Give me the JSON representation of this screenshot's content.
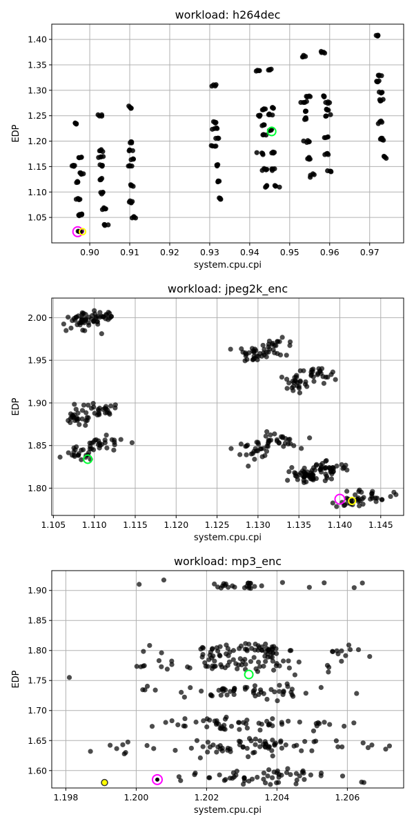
{
  "colors": {
    "point": "#000000",
    "highlight_magenta": "#ff00ff",
    "highlight_yellow": "#ffff00",
    "highlight_green": "#00ff33"
  },
  "chart_data": [
    {
      "type": "scatter",
      "title": "workload: h264dec",
      "xlabel": "system.cpu.cpi",
      "ylabel": "EDP",
      "xlim": [
        0.8905,
        0.9785
      ],
      "ylim": [
        1.0,
        1.43
      ],
      "xticks": [
        0.9,
        0.91,
        0.92,
        0.93,
        0.94,
        0.95,
        0.96,
        0.97
      ],
      "xtick_labels": [
        "0.90",
        "0.91",
        "0.92",
        "0.93",
        "0.94",
        "0.95",
        "0.96",
        "0.97"
      ],
      "yticks": [
        1.05,
        1.1,
        1.15,
        1.2,
        1.25,
        1.3,
        1.35,
        1.4
      ],
      "ytick_labels": [
        "1.05",
        "1.10",
        "1.15",
        "1.20",
        "1.25",
        "1.30",
        "1.35",
        "1.40"
      ],
      "grid": true,
      "point_alpha": 0.85,
      "clusters": [
        {
          "x": 0.8965,
          "y": 1.234,
          "n": 5
        },
        {
          "x": 0.8963,
          "y": 1.152,
          "n": 5
        },
        {
          "x": 0.8967,
          "y": 1.12,
          "n": 4
        },
        {
          "x": 0.8975,
          "y": 1.167,
          "n": 4
        },
        {
          "x": 0.898,
          "y": 1.138,
          "n": 5
        },
        {
          "x": 0.8972,
          "y": 1.085,
          "n": 5
        },
        {
          "x": 0.8978,
          "y": 1.055,
          "n": 6
        },
        {
          "x": 0.8978,
          "y": 1.023,
          "n": 4
        },
        {
          "x": 0.9025,
          "y": 1.25,
          "n": 4
        },
        {
          "x": 0.9028,
          "y": 1.168,
          "n": 4
        },
        {
          "x": 0.903,
          "y": 1.182,
          "n": 4
        },
        {
          "x": 0.9033,
          "y": 1.152,
          "n": 4
        },
        {
          "x": 0.9025,
          "y": 1.125,
          "n": 4
        },
        {
          "x": 0.903,
          "y": 1.098,
          "n": 4
        },
        {
          "x": 0.9035,
          "y": 1.067,
          "n": 5
        },
        {
          "x": 0.904,
          "y": 1.035,
          "n": 4
        },
        {
          "x": 0.91,
          "y": 1.266,
          "n": 4
        },
        {
          "x": 0.9105,
          "y": 1.197,
          "n": 4
        },
        {
          "x": 0.91,
          "y": 1.182,
          "n": 4
        },
        {
          "x": 0.9105,
          "y": 1.165,
          "n": 4
        },
        {
          "x": 0.91,
          "y": 1.15,
          "n": 4
        },
        {
          "x": 0.9105,
          "y": 1.112,
          "n": 4
        },
        {
          "x": 0.9105,
          "y": 1.08,
          "n": 5
        },
        {
          "x": 0.911,
          "y": 1.05,
          "n": 4
        },
        {
          "x": 0.9312,
          "y": 1.31,
          "n": 4
        },
        {
          "x": 0.9315,
          "y": 1.237,
          "n": 4
        },
        {
          "x": 0.9312,
          "y": 1.225,
          "n": 4
        },
        {
          "x": 0.9318,
          "y": 1.206,
          "n": 4
        },
        {
          "x": 0.9312,
          "y": 1.19,
          "n": 4
        },
        {
          "x": 0.9315,
          "y": 1.152,
          "n": 4
        },
        {
          "x": 0.932,
          "y": 1.122,
          "n": 5
        },
        {
          "x": 0.9325,
          "y": 1.087,
          "n": 4
        },
        {
          "x": 0.942,
          "y": 1.338,
          "n": 4
        },
        {
          "x": 0.945,
          "y": 1.341,
          "n": 4
        },
        {
          "x": 0.9435,
          "y": 1.263,
          "n": 5
        },
        {
          "x": 0.946,
          "y": 1.265,
          "n": 4
        },
        {
          "x": 0.9425,
          "y": 1.25,
          "n": 4
        },
        {
          "x": 0.9455,
          "y": 1.253,
          "n": 4
        },
        {
          "x": 0.9435,
          "y": 1.232,
          "n": 4
        },
        {
          "x": 0.945,
          "y": 1.222,
          "n": 5
        },
        {
          "x": 0.9435,
          "y": 1.212,
          "n": 4
        },
        {
          "x": 0.943,
          "y": 1.176,
          "n": 4
        },
        {
          "x": 0.946,
          "y": 1.178,
          "n": 4
        },
        {
          "x": 0.9435,
          "y": 1.145,
          "n": 5
        },
        {
          "x": 0.946,
          "y": 1.145,
          "n": 4
        },
        {
          "x": 0.944,
          "y": 1.11,
          "n": 4
        },
        {
          "x": 0.9465,
          "y": 1.112,
          "n": 4
        },
        {
          "x": 0.9535,
          "y": 1.366,
          "n": 4
        },
        {
          "x": 0.9585,
          "y": 1.375,
          "n": 4
        },
        {
          "x": 0.9545,
          "y": 1.288,
          "n": 5
        },
        {
          "x": 0.9585,
          "y": 1.288,
          "n": 4
        },
        {
          "x": 0.9535,
          "y": 1.277,
          "n": 4
        },
        {
          "x": 0.959,
          "y": 1.276,
          "n": 4
        },
        {
          "x": 0.954,
          "y": 1.258,
          "n": 4
        },
        {
          "x": 0.9595,
          "y": 1.262,
          "n": 4
        },
        {
          "x": 0.954,
          "y": 1.244,
          "n": 4
        },
        {
          "x": 0.9595,
          "y": 1.25,
          "n": 4
        },
        {
          "x": 0.9545,
          "y": 1.2,
          "n": 5
        },
        {
          "x": 0.959,
          "y": 1.208,
          "n": 4
        },
        {
          "x": 0.955,
          "y": 1.166,
          "n": 5
        },
        {
          "x": 0.9595,
          "y": 1.174,
          "n": 4
        },
        {
          "x": 0.9555,
          "y": 1.133,
          "n": 4
        },
        {
          "x": 0.96,
          "y": 1.14,
          "n": 4
        },
        {
          "x": 0.972,
          "y": 1.408,
          "n": 4
        },
        {
          "x": 0.9725,
          "y": 1.329,
          "n": 4
        },
        {
          "x": 0.972,
          "y": 1.318,
          "n": 4
        },
        {
          "x": 0.973,
          "y": 1.295,
          "n": 4
        },
        {
          "x": 0.9728,
          "y": 1.282,
          "n": 4
        },
        {
          "x": 0.9725,
          "y": 1.237,
          "n": 4
        },
        {
          "x": 0.9732,
          "y": 1.204,
          "n": 5
        },
        {
          "x": 0.9738,
          "y": 1.168,
          "n": 4
        }
      ],
      "highlights": [
        {
          "x": 0.897,
          "y": 1.022,
          "color": "#ff00ff",
          "style": "ring",
          "r": 7
        },
        {
          "x": 0.8977,
          "y": 1.022,
          "color": "#000000",
          "style": "dot",
          "r": 3.5
        },
        {
          "x": 0.8982,
          "y": 1.022,
          "color": "#ffff00",
          "style": "ring",
          "r": 4.5
        },
        {
          "x": 0.9455,
          "y": 1.219,
          "color": "#00ff33",
          "style": "ring",
          "r": 6
        }
      ]
    },
    {
      "type": "scatter",
      "title": "workload: jpeg2k_enc",
      "xlabel": "system.cpu.cpi",
      "ylabel": "EDP",
      "xlim": [
        1.1048,
        1.1478
      ],
      "ylim": [
        1.768,
        2.023
      ],
      "xticks": [
        1.105,
        1.11,
        1.115,
        1.12,
        1.125,
        1.13,
        1.135,
        1.14,
        1.145
      ],
      "xtick_labels": [
        "1.105",
        "1.110",
        "1.115",
        "1.120",
        "1.125",
        "1.130",
        "1.135",
        "1.140",
        "1.145"
      ],
      "yticks": [
        1.8,
        1.85,
        1.9,
        1.95,
        2.0
      ],
      "ytick_labels": [
        "1.80",
        "1.85",
        "1.90",
        "1.95",
        "2.00"
      ],
      "grid": true,
      "point_alpha": 0.7,
      "clusters": [
        {
          "x": 1.1082,
          "y": 1.994,
          "n": 28,
          "sx": 0.0012,
          "sy": 0.005
        },
        {
          "x": 1.1105,
          "y": 2.001,
          "n": 32,
          "sx": 0.0013,
          "sy": 0.005
        },
        {
          "x": 1.108,
          "y": 1.882,
          "n": 24,
          "sx": 0.001,
          "sy": 0.005
        },
        {
          "x": 1.1105,
          "y": 1.89,
          "n": 26,
          "sx": 0.0013,
          "sy": 0.005
        },
        {
          "x": 1.1082,
          "y": 1.84,
          "n": 18,
          "sx": 0.0009,
          "sy": 0.004
        },
        {
          "x": 1.111,
          "y": 1.85,
          "n": 28,
          "sx": 0.0015,
          "sy": 0.005
        },
        {
          "x": 1.1295,
          "y": 1.958,
          "n": 24,
          "sx": 0.001,
          "sy": 0.005
        },
        {
          "x": 1.1322,
          "y": 1.965,
          "n": 26,
          "sx": 0.0013,
          "sy": 0.005
        },
        {
          "x": 1.1295,
          "y": 1.846,
          "n": 24,
          "sx": 0.0012,
          "sy": 0.005
        },
        {
          "x": 1.1322,
          "y": 1.855,
          "n": 28,
          "sx": 0.0013,
          "sy": 0.005
        },
        {
          "x": 1.1345,
          "y": 1.923,
          "n": 24,
          "sx": 0.001,
          "sy": 0.005
        },
        {
          "x": 1.1372,
          "y": 1.932,
          "n": 24,
          "sx": 0.0012,
          "sy": 0.005
        },
        {
          "x": 1.136,
          "y": 1.814,
          "n": 40,
          "sx": 0.0014,
          "sy": 0.005
        },
        {
          "x": 1.1385,
          "y": 1.823,
          "n": 40,
          "sx": 0.0015,
          "sy": 0.005
        },
        {
          "x": 1.1413,
          "y": 1.785,
          "n": 20,
          "sx": 0.001,
          "sy": 0.004
        },
        {
          "x": 1.144,
          "y": 1.792,
          "n": 22,
          "sx": 0.0012,
          "sy": 0.004
        }
      ],
      "highlights": [
        {
          "x": 1.1092,
          "y": 1.834,
          "color": "#00ff33",
          "style": "ring",
          "r": 6
        },
        {
          "x": 1.14,
          "y": 1.787,
          "color": "#ff00ff",
          "style": "ring",
          "r": 7
        },
        {
          "x": 1.1415,
          "y": 1.785,
          "color": "#ffff00",
          "style": "ring",
          "r": 5
        }
      ]
    },
    {
      "type": "scatter",
      "title": "workload: mp3_enc",
      "xlabel": "system.cpu.cpi",
      "ylabel": "EDP",
      "xlim": [
        1.1976,
        1.2076
      ],
      "ylim": [
        1.571,
        1.933
      ],
      "xticks": [
        1.198,
        1.2,
        1.202,
        1.204,
        1.206
      ],
      "xtick_labels": [
        "1.198",
        "1.200",
        "1.202",
        "1.204",
        "1.206"
      ],
      "yticks": [
        1.6,
        1.65,
        1.7,
        1.75,
        1.8,
        1.85,
        1.9
      ],
      "ytick_labels": [
        "1.60",
        "1.65",
        "1.70",
        "1.75",
        "1.80",
        "1.85",
        "1.90"
      ],
      "grid": true,
      "point_alpha": 0.7,
      "bands": [
        {
          "y": 1.908,
          "x0": 1.2,
          "x1": 1.2068,
          "n": 28,
          "dense": [
            1.2023,
            1.2035
          ],
          "sy": 0.004
        },
        {
          "y": 1.8,
          "x0": 1.1998,
          "x1": 1.2068,
          "n": 70,
          "dense": [
            1.2018,
            1.204
          ],
          "sy": 0.006
        },
        {
          "y": 1.775,
          "x0": 1.1998,
          "x1": 1.2068,
          "n": 60,
          "dense": [
            1.2018,
            1.204
          ],
          "sy": 0.007
        },
        {
          "y": 1.732,
          "x0": 1.2,
          "x1": 1.2067,
          "n": 55,
          "dense": [
            1.202,
            1.2045
          ],
          "sy": 0.006
        },
        {
          "y": 1.678,
          "x0": 1.2,
          "x1": 1.2065,
          "n": 55,
          "dense": [
            1.202,
            1.2042
          ],
          "sy": 0.005
        },
        {
          "y": 1.64,
          "x0": 1.1992,
          "x1": 1.2072,
          "n": 75,
          "dense": [
            1.2018,
            1.2048
          ],
          "sy": 0.006
        },
        {
          "y": 1.59,
          "x0": 1.2,
          "x1": 1.2068,
          "n": 55,
          "dense": [
            1.2025,
            1.205
          ],
          "sy": 0.006
        }
      ],
      "extra_points": [
        {
          "x": 1.1981,
          "y": 1.755
        },
        {
          "x": 1.1987,
          "y": 1.632
        },
        {
          "x": 1.1997,
          "y": 1.63
        }
      ],
      "highlights": [
        {
          "x": 1.1991,
          "y": 1.58,
          "color": "#ffff00",
          "style": "filled",
          "r": 4.5
        },
        {
          "x": 1.2006,
          "y": 1.585,
          "color": "#ff00ff",
          "style": "ring",
          "r": 7
        },
        {
          "x": 1.2006,
          "y": 1.585,
          "color": "#000000",
          "style": "dot",
          "r": 3
        },
        {
          "x": 1.2032,
          "y": 1.76,
          "color": "#00ff33",
          "style": "ring",
          "r": 6
        }
      ]
    }
  ]
}
